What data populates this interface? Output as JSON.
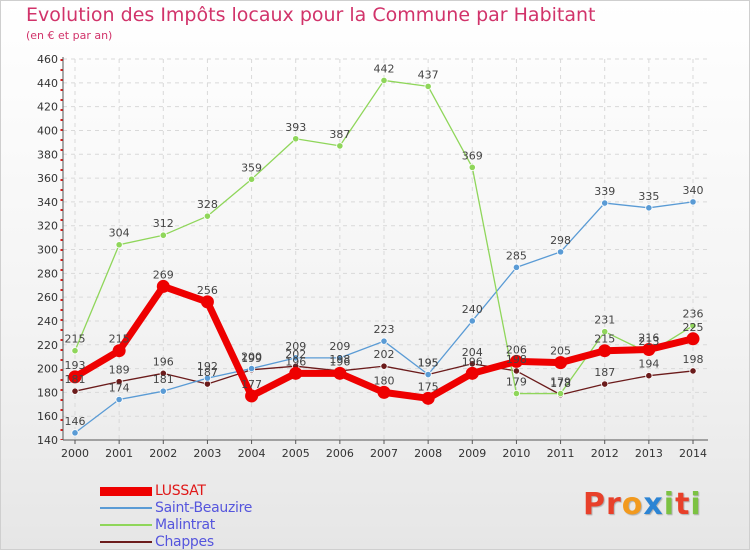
{
  "header": {
    "title": "Evolution des Impôts locaux pour la Commune par Habitant",
    "subtitle": "(en € et par an)"
  },
  "logo": {
    "text": "Proxiti",
    "colors": [
      "#e8402a",
      "#e8402a",
      "#f29a1f",
      "#2b84d4",
      "#7cc242",
      "#e8402a",
      "#7cc242"
    ]
  },
  "chart_data": {
    "type": "line",
    "title": "Evolution des Impôts locaux pour la Commune par Habitant",
    "subtitle": "(en € et par an)",
    "xlabel": "",
    "ylabel": "",
    "x": [
      "2000",
      "2001",
      "2002",
      "2003",
      "2004",
      "2005",
      "2006",
      "2007",
      "2008",
      "2009",
      "2010",
      "2011",
      "2012",
      "2013",
      "2014"
    ],
    "ylim": [
      140,
      460
    ],
    "yticks": [
      140,
      160,
      180,
      200,
      220,
      240,
      260,
      280,
      300,
      320,
      340,
      360,
      380,
      400,
      420,
      440,
      460
    ],
    "grid": true,
    "legend_position": "bottom-left",
    "series": [
      {
        "name": "Chappes",
        "color": "#6b1b1b",
        "values": [
          181,
          189,
          196,
          187,
          199,
          202,
          198,
          202,
          195,
          204,
          198,
          178,
          187,
          194,
          198
        ]
      },
      {
        "name": "Saint-Beauzire",
        "color": "#5a9bd5",
        "values": [
          146,
          174,
          181,
          192,
          200,
          209,
          209,
          223,
          195,
          240,
          285,
          298,
          339,
          335,
          340
        ]
      },
      {
        "name": "Malintrat",
        "color": "#8fd65a",
        "values": [
          215,
          304,
          312,
          328,
          359,
          393,
          387,
          442,
          437,
          369,
          179,
          179,
          231,
          213,
          236
        ]
      },
      {
        "name": "LUSSAT",
        "color": "#ee0000",
        "values": [
          193,
          215,
          269,
          256,
          177,
          196,
          196,
          180,
          175,
          196,
          206,
          205,
          215,
          216,
          225
        ]
      }
    ],
    "legend_order": [
      "LUSSAT",
      "Saint-Beauzire",
      "Malintrat",
      "Chappes"
    ]
  }
}
